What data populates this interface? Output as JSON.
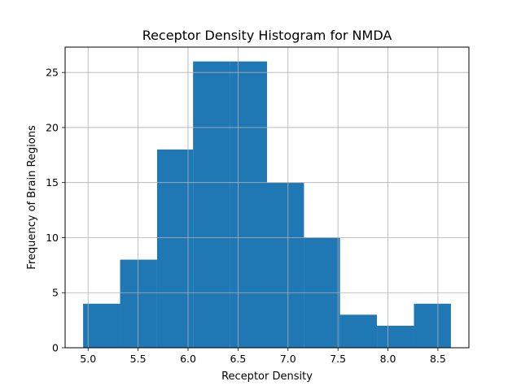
{
  "chart_data": {
    "type": "bar",
    "title": "Receptor Density Histogram for NMDA",
    "xlabel": "Receptor Density",
    "ylabel": "Frequency of Brain Regions",
    "bins": [
      {
        "x0": 4.95,
        "x1": 5.32,
        "value": 4
      },
      {
        "x0": 5.32,
        "x1": 5.69,
        "value": 8
      },
      {
        "x0": 5.69,
        "x1": 6.05,
        "value": 18
      },
      {
        "x0": 6.05,
        "x1": 6.42,
        "value": 26
      },
      {
        "x0": 6.42,
        "x1": 6.79,
        "value": 26
      },
      {
        "x0": 6.79,
        "x1": 7.16,
        "value": 15
      },
      {
        "x0": 7.16,
        "x1": 7.52,
        "value": 10
      },
      {
        "x0": 7.52,
        "x1": 7.89,
        "value": 3
      },
      {
        "x0": 7.89,
        "x1": 8.26,
        "value": 2
      },
      {
        "x0": 8.26,
        "x1": 8.63,
        "value": 4
      }
    ],
    "xlim": [
      4.77,
      8.81
    ],
    "ylim": [
      0,
      27.3
    ],
    "xticks": [
      "5.0",
      "5.5",
      "6.0",
      "6.5",
      "7.0",
      "7.5",
      "8.0",
      "8.5"
    ],
    "xtick_values": [
      5.0,
      5.5,
      6.0,
      6.5,
      7.0,
      7.5,
      8.0,
      8.5
    ],
    "yticks": [
      "0",
      "5",
      "10",
      "15",
      "20",
      "25"
    ],
    "ytick_values": [
      0,
      5,
      10,
      15,
      20,
      25
    ],
    "grid": true,
    "bar_color": "#1f77b4",
    "grid_color": "#b0b0b0"
  }
}
